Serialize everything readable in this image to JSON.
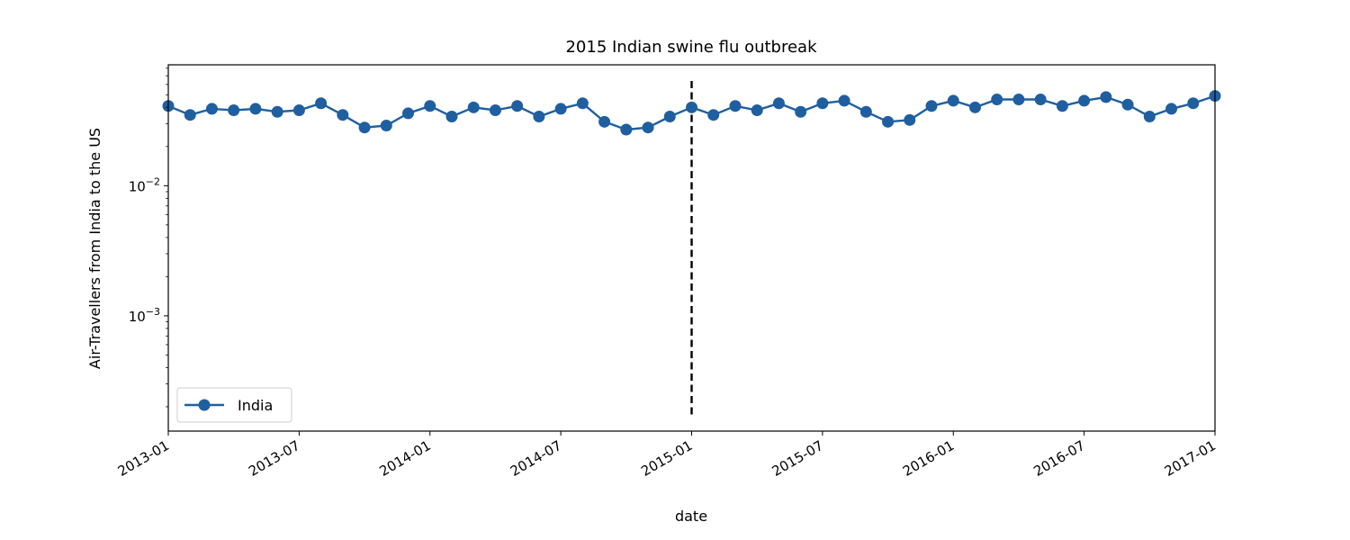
{
  "chart_data": {
    "type": "line",
    "title": "2015 Indian swine flu outbreak",
    "xlabel": "date",
    "ylabel": "Air-Travellers from India to the US",
    "yscale": "log",
    "xlim": [
      "2013-01",
      "2017-01"
    ],
    "ylim": [
      0.00013,
      0.085
    ],
    "x_tick_labels": [
      "2013-01",
      "2013-07",
      "2014-01",
      "2014-07",
      "2015-01",
      "2015-07",
      "2016-01",
      "2016-07",
      "2017-01"
    ],
    "y_tick_labels": [
      {
        "value": 0.01,
        "base": "10",
        "exponent": "−2"
      },
      {
        "value": 0.001,
        "base": "10",
        "exponent": "−3"
      }
    ],
    "legend_position": "lower-left",
    "grid": false,
    "colors": {
      "series": "#1f5fa0",
      "event_line": "#000000"
    },
    "event_line": {
      "x": "2015-01",
      "style": "dashed"
    },
    "series": [
      {
        "name": "India",
        "x": [
          "2013-01",
          "2013-02",
          "2013-03",
          "2013-04",
          "2013-05",
          "2013-06",
          "2013-07",
          "2013-08",
          "2013-09",
          "2013-10",
          "2013-11",
          "2013-12",
          "2014-01",
          "2014-02",
          "2014-03",
          "2014-04",
          "2014-05",
          "2014-06",
          "2014-07",
          "2014-08",
          "2014-09",
          "2014-10",
          "2014-11",
          "2014-12",
          "2015-01",
          "2015-02",
          "2015-03",
          "2015-04",
          "2015-05",
          "2015-06",
          "2015-07",
          "2015-08",
          "2015-09",
          "2015-10",
          "2015-11",
          "2015-12",
          "2016-01",
          "2016-02",
          "2016-03",
          "2016-04",
          "2016-05",
          "2016-06",
          "2016-07",
          "2016-08",
          "2016-09",
          "2016-10",
          "2016-11",
          "2016-12",
          "2017-01"
        ],
        "values": [
          0.041,
          0.035,
          0.039,
          0.038,
          0.039,
          0.037,
          0.038,
          0.043,
          0.035,
          0.028,
          0.029,
          0.036,
          0.041,
          0.034,
          0.04,
          0.038,
          0.041,
          0.034,
          0.039,
          0.043,
          0.031,
          0.027,
          0.028,
          0.034,
          0.04,
          0.035,
          0.041,
          0.038,
          0.043,
          0.037,
          0.043,
          0.045,
          0.037,
          0.031,
          0.032,
          0.041,
          0.045,
          0.04,
          0.046,
          0.046,
          0.046,
          0.041,
          0.045,
          0.048,
          0.042,
          0.034,
          0.039,
          0.043,
          0.049
        ]
      }
    ]
  }
}
